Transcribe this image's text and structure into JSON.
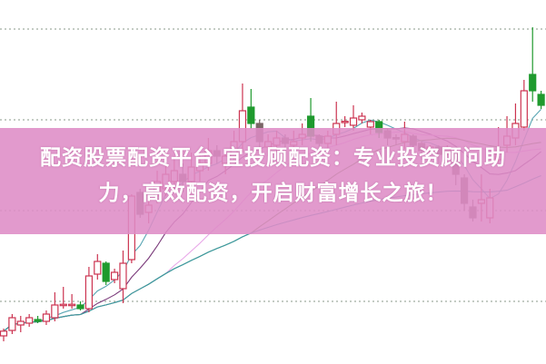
{
  "banner": {
    "line1": "配资股票配资平台 宜投顾配资：专业投资顾问助",
    "line2": "力，高效配资，开启财富增长之旅！"
  },
  "chart_data": {
    "type": "candlestick",
    "title": "",
    "grid": true,
    "gridlines": [
      92,
      67,
      42,
      17
    ],
    "ylim": [
      0,
      100
    ],
    "colors": {
      "up": "#cc3350",
      "down": "#1f9a2e",
      "down_dark": "#7a6666",
      "grid": "#8a9a8a",
      "banner": "#de8cc6"
    },
    "candles": [
      {
        "o": 7.5,
        "c": 8.8,
        "h": 9.5,
        "l": 6,
        "t": "up"
      },
      {
        "o": 9,
        "c": 12.5,
        "h": 13.5,
        "l": 8,
        "t": "up"
      },
      {
        "o": 10.5,
        "c": 11.5,
        "h": 13,
        "l": 8.5,
        "t": "up"
      },
      {
        "o": 11,
        "c": 12.5,
        "h": 13.5,
        "l": 10,
        "t": "up"
      },
      {
        "o": 12,
        "c": 11.5,
        "h": 13,
        "l": 11,
        "t": "down"
      },
      {
        "o": 11.5,
        "c": 13.5,
        "h": 14.5,
        "l": 10.5,
        "t": "up"
      },
      {
        "o": 12.5,
        "c": 16,
        "h": 19.5,
        "l": 11.5,
        "t": "up"
      },
      {
        "o": 16,
        "c": 16.2,
        "h": 21,
        "l": 15,
        "t": "up"
      },
      {
        "o": 16,
        "c": 16.2,
        "h": 19,
        "l": 15,
        "t": "up"
      },
      {
        "o": 16,
        "c": 15,
        "h": 17,
        "l": 14.5,
        "t": "down"
      },
      {
        "o": 15,
        "c": 24,
        "h": 26.5,
        "l": 14,
        "t": "up"
      },
      {
        "o": 24.5,
        "c": 28,
        "h": 30,
        "l": 23,
        "t": "up"
      },
      {
        "o": 27.5,
        "c": 22.5,
        "h": 28,
        "l": 21.5,
        "t": "down"
      },
      {
        "o": 23,
        "c": 25,
        "h": 26,
        "l": 22,
        "t": "up"
      },
      {
        "o": 20.5,
        "c": 27.5,
        "h": 31,
        "l": 16.5,
        "t": "up"
      },
      {
        "o": 28.5,
        "c": 46,
        "h": 46.5,
        "l": 27.5,
        "t": "up"
      },
      {
        "o": 47,
        "c": 41,
        "h": 48,
        "l": 40,
        "t": "dark"
      },
      {
        "o": 41.5,
        "c": 43.5,
        "h": 45,
        "l": 38.5,
        "t": "up"
      },
      {
        "o": 46,
        "c": 50,
        "h": 53,
        "l": 44,
        "t": "up"
      },
      {
        "o": 48,
        "c": 52,
        "h": 56,
        "l": 46,
        "t": "up"
      },
      {
        "o": 50,
        "c": 53,
        "h": 57,
        "l": 48,
        "t": "up"
      },
      {
        "o": 52,
        "c": 50,
        "h": 55,
        "l": 47,
        "t": "dark"
      },
      {
        "o": 50,
        "c": 54,
        "h": 58,
        "l": 48,
        "t": "up"
      },
      {
        "o": 53,
        "c": 55,
        "h": 58,
        "l": 50,
        "t": "up"
      },
      {
        "o": 55,
        "c": 58.5,
        "h": 62,
        "l": 53,
        "t": "up"
      },
      {
        "o": 58.5,
        "c": 57,
        "h": 60,
        "l": 55,
        "t": "dark"
      },
      {
        "o": 55,
        "c": 57,
        "h": 59,
        "l": 52,
        "t": "up"
      },
      {
        "o": 57,
        "c": 61,
        "h": 64,
        "l": 56,
        "t": "up"
      },
      {
        "o": 61,
        "c": 69.5,
        "h": 77,
        "l": 58,
        "t": "up"
      },
      {
        "o": 70.5,
        "c": 66,
        "h": 75.5,
        "l": 64.5,
        "t": "down"
      },
      {
        "o": 66,
        "c": 61,
        "h": 67,
        "l": 58,
        "t": "dark"
      },
      {
        "o": 59.5,
        "c": 61,
        "h": 63,
        "l": 57,
        "t": "up"
      },
      {
        "o": 60,
        "c": 62,
        "h": 64,
        "l": 58,
        "t": "up"
      },
      {
        "o": 62,
        "c": 60.5,
        "h": 63,
        "l": 58.5,
        "t": "dark"
      },
      {
        "o": 60,
        "c": 61,
        "h": 64,
        "l": 57,
        "t": "up"
      },
      {
        "o": 62,
        "c": 63,
        "h": 66,
        "l": 60,
        "t": "up"
      },
      {
        "o": 68,
        "c": 62.5,
        "h": 73,
        "l": 61,
        "t": "down"
      },
      {
        "o": 62.5,
        "c": 60.5,
        "h": 63,
        "l": 58,
        "t": "dark"
      },
      {
        "o": 60.5,
        "c": 62.5,
        "h": 64,
        "l": 59,
        "t": "up"
      },
      {
        "o": 63,
        "c": 66,
        "h": 72,
        "l": 60,
        "t": "up"
      },
      {
        "o": 66.5,
        "c": 66.6,
        "h": 68,
        "l": 65,
        "t": "up"
      },
      {
        "o": 65.5,
        "c": 67.5,
        "h": 71,
        "l": 64,
        "t": "up"
      },
      {
        "o": 67,
        "c": 68,
        "h": 69,
        "l": 66,
        "t": "up"
      },
      {
        "o": 65,
        "c": 66.5,
        "h": 67,
        "l": 63,
        "t": "up"
      },
      {
        "o": 66.5,
        "c": 63.5,
        "h": 67,
        "l": 62,
        "t": "down"
      },
      {
        "o": 64,
        "c": 62,
        "h": 64.5,
        "l": 60,
        "t": "dark"
      },
      {
        "o": 62,
        "c": 62.1,
        "h": 63,
        "l": 60,
        "t": "dark"
      },
      {
        "o": 61,
        "c": 63,
        "h": 66.5,
        "l": 59,
        "t": "up"
      },
      {
        "o": 62.5,
        "c": 60,
        "h": 63,
        "l": 58,
        "t": "dark"
      },
      {
        "o": 60.5,
        "c": 58.5,
        "h": 61,
        "l": 56,
        "t": "dark"
      },
      {
        "o": 58.5,
        "c": 59.5,
        "h": 60,
        "l": 57,
        "t": "up"
      },
      {
        "o": 59.5,
        "c": 57.5,
        "h": 60,
        "l": 55,
        "t": "dark"
      },
      {
        "o": 58.5,
        "c": 59,
        "h": 60,
        "l": 57,
        "t": "up"
      },
      {
        "o": 58,
        "c": 52,
        "h": 58.5,
        "l": 49,
        "t": "dark"
      },
      {
        "o": 51,
        "c": 44,
        "h": 52,
        "l": 42,
        "t": "dark"
      },
      {
        "o": 43,
        "c": 40,
        "h": 45,
        "l": 39,
        "t": "dark"
      },
      {
        "o": 44,
        "c": 45,
        "h": 52,
        "l": 39,
        "t": "up"
      },
      {
        "o": 40,
        "c": 45.5,
        "h": 48,
        "l": 38.5,
        "t": "up"
      },
      {
        "o": 56,
        "c": 58.5,
        "h": 65,
        "l": 55,
        "t": "up"
      },
      {
        "o": 60,
        "c": 62.5,
        "h": 68,
        "l": 58,
        "t": "up"
      },
      {
        "o": 62,
        "c": 66,
        "h": 71.5,
        "l": 60,
        "t": "up"
      },
      {
        "o": 65,
        "c": 75,
        "h": 78,
        "l": 64,
        "t": "up"
      },
      {
        "o": 79.5,
        "c": 75,
        "h": 92.5,
        "l": 72,
        "t": "down"
      },
      {
        "o": 74,
        "c": 71,
        "h": 75,
        "l": 70,
        "t": "down"
      }
    ],
    "moving_averages": [
      {
        "period": 5,
        "color": "#5aa6b4"
      },
      {
        "period": 10,
        "color": "#7a3a7a"
      },
      {
        "period": 20,
        "color": "#e8a6e8"
      },
      {
        "period": 30,
        "color": "#5f8a38"
      },
      {
        "period": 60,
        "color": "#3a9aa8"
      }
    ]
  }
}
